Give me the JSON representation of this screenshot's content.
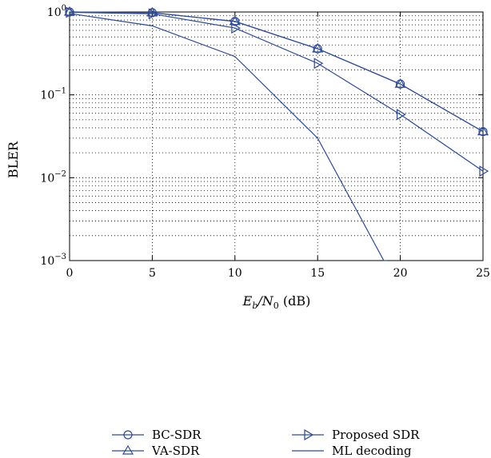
{
  "chart_data": {
    "type": "line",
    "xlabel": {
      "E": "E",
      "b": "b",
      "slash": "/N",
      "zero": "0",
      "unit": " (dB)"
    },
    "ylabel": "BLER",
    "xlim": [
      0,
      25
    ],
    "ylim": [
      0.001,
      1
    ],
    "yscale": "log",
    "grid": true,
    "x_ticks": [
      0,
      5,
      10,
      15,
      20,
      25
    ],
    "x_tick_labels": [
      "0",
      "5",
      "10",
      "15",
      "20",
      "25"
    ],
    "y_ticks": [
      0.001,
      0.01,
      0.1,
      1
    ],
    "y_tick_labels": [
      {
        "base": "10",
        "exp": "−3"
      },
      {
        "base": "10",
        "exp": "−2"
      },
      {
        "base": "10",
        "exp": "−1"
      },
      {
        "base": "10",
        "exp": "0"
      }
    ],
    "legend_position": "bottom",
    "line_color": "#2b4a9c",
    "series": [
      {
        "name": "BC-SDR",
        "marker": "circle",
        "x": [
          0,
          5,
          10,
          15,
          20,
          25
        ],
        "y": [
          1.0,
          0.98,
          0.77,
          0.36,
          0.135,
          0.036
        ]
      },
      {
        "name": "VA-SDR",
        "marker": "triangle-up",
        "x": [
          0,
          5,
          10,
          15,
          20,
          25
        ],
        "y": [
          1.0,
          0.98,
          0.77,
          0.36,
          0.135,
          0.036
        ]
      },
      {
        "name": "Proposed SDR",
        "marker": "triangle-right",
        "x": [
          0,
          5,
          10,
          15,
          20,
          25
        ],
        "y": [
          0.99,
          0.95,
          0.64,
          0.24,
          0.058,
          0.012
        ]
      },
      {
        "name": "ML decoding",
        "marker": "none",
        "x": [
          0,
          5,
          10,
          15,
          19,
          19.2
        ],
        "y": [
          0.96,
          0.68,
          0.29,
          0.03,
          0.001,
          0.001
        ]
      }
    ]
  }
}
